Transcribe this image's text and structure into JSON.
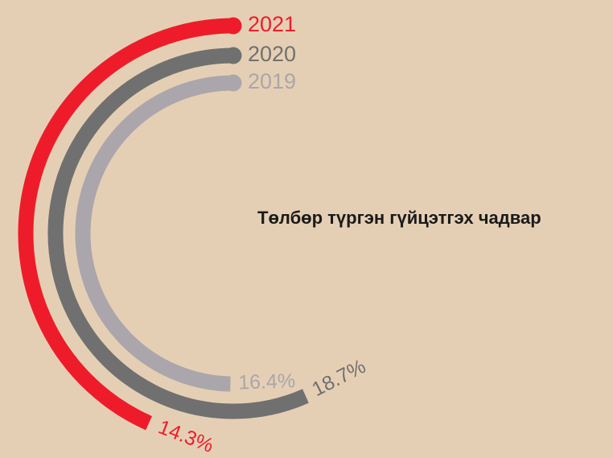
{
  "chart_data": {
    "type": "radial_bar",
    "title": "Төлбөр түргэн гүйцэтгэх чадвар",
    "ylim": [
      0,
      33
    ],
    "series": [
      {
        "name": "2021",
        "color": "#ee1c2a",
        "values": [
          14.3
        ],
        "value_labels": [
          "14.3%"
        ]
      },
      {
        "name": "2020",
        "color": "#707070",
        "values": [
          18.7
        ],
        "value_labels": [
          "18.7%"
        ]
      },
      {
        "name": "2019",
        "color": "#aaa6ab",
        "values": [
          16.4
        ],
        "value_labels": [
          "16.4%"
        ]
      }
    ]
  }
}
